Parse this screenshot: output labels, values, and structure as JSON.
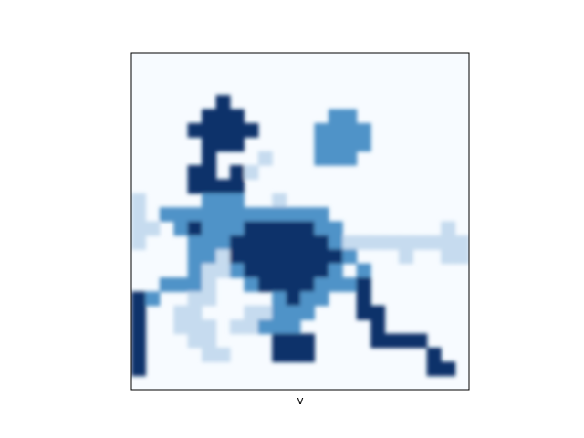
{
  "chart_data": {
    "type": "heatmap",
    "title": "",
    "xlabel": "v",
    "ylabel": "",
    "colormap": "Blues",
    "value_range": [
      0,
      3
    ],
    "xticks": [],
    "yticks": [],
    "grid": false,
    "legend": "none",
    "rows": 24,
    "cols": 24,
    "values": [
      [
        0,
        0,
        0,
        0,
        0,
        0,
        0,
        0,
        0,
        0,
        0,
        0,
        0,
        0,
        0,
        0,
        0,
        0,
        0,
        0,
        0,
        0,
        0,
        0
      ],
      [
        0,
        0,
        0,
        0,
        0,
        0,
        0,
        0,
        0,
        0,
        0,
        0,
        0,
        0,
        0,
        0,
        0,
        0,
        0,
        0,
        0,
        0,
        0,
        0
      ],
      [
        0,
        0,
        0,
        0,
        0,
        0,
        0,
        0,
        0,
        0,
        0,
        0,
        0,
        0,
        0,
        0,
        0,
        0,
        0,
        0,
        0,
        0,
        0,
        0
      ],
      [
        0,
        0,
        0,
        0,
        0,
        0,
        3,
        0,
        0,
        0,
        0,
        0,
        0,
        0,
        0,
        0,
        0,
        0,
        0,
        0,
        0,
        0,
        0,
        0
      ],
      [
        0,
        0,
        0,
        0,
        0,
        3,
        3,
        3,
        0,
        0,
        0,
        0,
        0,
        0,
        2,
        2,
        0,
        0,
        0,
        0,
        0,
        0,
        0,
        0
      ],
      [
        0,
        0,
        0,
        0,
        3,
        3,
        3,
        3,
        3,
        0,
        0,
        0,
        0,
        2,
        2,
        2,
        2,
        0,
        0,
        0,
        0,
        0,
        0,
        0
      ],
      [
        0,
        0,
        0,
        0,
        0,
        3,
        3,
        3,
        0,
        0,
        0,
        0,
        0,
        2,
        2,
        2,
        2,
        0,
        0,
        0,
        0,
        0,
        0,
        0
      ],
      [
        0,
        0,
        0,
        0,
        0,
        3,
        0,
        0,
        0,
        1,
        0,
        0,
        0,
        2,
        2,
        2,
        0,
        0,
        0,
        0,
        0,
        0,
        0,
        0
      ],
      [
        0,
        0,
        0,
        0,
        3,
        3,
        0,
        3,
        1,
        0,
        0,
        0,
        0,
        0,
        0,
        0,
        0,
        0,
        0,
        0,
        0,
        0,
        0,
        0
      ],
      [
        0,
        0,
        0,
        0,
        3,
        3,
        3,
        3,
        0,
        0,
        0,
        0,
        0,
        0,
        0,
        0,
        0,
        0,
        0,
        0,
        0,
        0,
        0,
        0
      ],
      [
        1,
        0,
        0,
        0,
        0,
        2,
        2,
        2,
        0,
        0,
        1,
        0,
        0,
        0,
        0,
        0,
        0,
        0,
        0,
        0,
        0,
        0,
        0,
        0
      ],
      [
        1,
        0,
        2,
        2,
        2,
        2,
        2,
        2,
        2,
        2,
        2,
        2,
        2,
        2,
        0,
        0,
        0,
        0,
        0,
        0,
        0,
        0,
        0,
        0
      ],
      [
        1,
        1,
        0,
        2,
        3,
        2,
        2,
        2,
        3,
        3,
        3,
        3,
        3,
        2,
        2,
        0,
        0,
        0,
        0,
        0,
        0,
        0,
        1,
        0
      ],
      [
        1,
        0,
        0,
        0,
        2,
        2,
        2,
        3,
        3,
        3,
        3,
        3,
        3,
        3,
        2,
        1,
        1,
        1,
        1,
        1,
        1,
        1,
        1,
        1
      ],
      [
        0,
        0,
        0,
        0,
        2,
        2,
        1,
        3,
        3,
        3,
        3,
        3,
        3,
        3,
        3,
        2,
        0,
        0,
        0,
        1,
        0,
        0,
        1,
        1
      ],
      [
        0,
        0,
        0,
        0,
        2,
        1,
        1,
        2,
        3,
        3,
        3,
        3,
        3,
        3,
        2,
        0,
        2,
        0,
        0,
        0,
        0,
        0,
        0,
        0
      ],
      [
        0,
        0,
        2,
        2,
        2,
        1,
        0,
        0,
        2,
        3,
        3,
        3,
        3,
        2,
        2,
        2,
        3,
        0,
        0,
        0,
        0,
        0,
        0,
        0
      ],
      [
        3,
        2,
        0,
        0,
        1,
        1,
        0,
        0,
        0,
        0,
        2,
        3,
        2,
        2,
        0,
        0,
        3,
        0,
        0,
        0,
        0,
        0,
        0,
        0
      ],
      [
        3,
        0,
        0,
        1,
        1,
        0,
        0,
        0,
        1,
        1,
        2,
        2,
        2,
        0,
        0,
        0,
        3,
        3,
        0,
        0,
        0,
        0,
        0,
        0
      ],
      [
        3,
        0,
        0,
        1,
        1,
        1,
        0,
        1,
        1,
        2,
        2,
        2,
        0,
        0,
        0,
        0,
        0,
        3,
        0,
        0,
        0,
        0,
        0,
        0
      ],
      [
        3,
        0,
        0,
        0,
        1,
        1,
        0,
        0,
        0,
        0,
        3,
        3,
        3,
        0,
        0,
        0,
        0,
        3,
        3,
        3,
        3,
        0,
        0,
        0
      ],
      [
        3,
        0,
        0,
        0,
        0,
        1,
        1,
        0,
        0,
        0,
        3,
        3,
        3,
        0,
        0,
        0,
        0,
        0,
        0,
        0,
        0,
        3,
        0,
        0
      ],
      [
        3,
        0,
        0,
        0,
        0,
        0,
        0,
        0,
        0,
        0,
        0,
        0,
        0,
        0,
        0,
        0,
        0,
        0,
        0,
        0,
        0,
        3,
        3,
        0
      ],
      [
        0,
        0,
        0,
        0,
        0,
        0,
        0,
        0,
        0,
        0,
        0,
        0,
        0,
        0,
        0,
        0,
        0,
        0,
        0,
        0,
        0,
        0,
        0,
        0
      ]
    ]
  }
}
